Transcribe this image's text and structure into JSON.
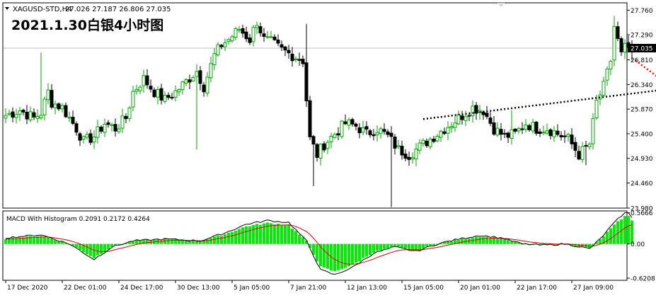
{
  "header": {
    "symbol": "XAGUSD-STD,H4",
    "ohlc": "27.026 27.187 26.806 27.035",
    "title": "2021.1.30白银4小时图"
  },
  "colors": {
    "up": "#00aa00",
    "down": "#000000",
    "macd_hist": "#00ee00",
    "signal": "#dd0000",
    "macd_line": "#000000",
    "trend": "#000000",
    "forecast": "#ff0000",
    "current_line": "#c0c0c0"
  },
  "macd": {
    "label": "MACD With Histogram 0.2091 0.2172 0.4264"
  },
  "chart_data": [
    {
      "type": "candlestick",
      "symbol": "XAGUSD-STD",
      "timeframe": "H4",
      "current_price": 27.035,
      "current_price_label": "27.035",
      "y_ticks": [
        "27.760",
        "27.290",
        "26.810",
        "26.340",
        "25.870",
        "25.400",
        "24.930",
        "24.460",
        "23.980"
      ],
      "x_ticks": [
        "17 Dec 2020",
        "22 Dec 01:00",
        "24 Dec 17:00",
        "30 Dec 13:00",
        "5 Jan 05:00",
        "7 Jan 21:00",
        "12 Jan 13:00",
        "15 Jan 05:00",
        "20 Jan 01:00",
        "22 Jan 17:00",
        "27 Jan 09:00"
      ],
      "ylim": [
        23.98,
        27.9
      ],
      "grid": false,
      "bar_count": 178,
      "anchors": [
        [
          0,
          25.75
        ],
        [
          4,
          25.85
        ],
        [
          8,
          25.7
        ],
        [
          10,
          25.8
        ],
        [
          12,
          26.2
        ],
        [
          13,
          26.0
        ],
        [
          16,
          25.9
        ],
        [
          20,
          25.5
        ],
        [
          22,
          25.25
        ],
        [
          25,
          25.35
        ],
        [
          28,
          25.6
        ],
        [
          31,
          25.5
        ],
        [
          34,
          25.7
        ],
        [
          36,
          26.2
        ],
        [
          39,
          26.45
        ],
        [
          42,
          26.2
        ],
        [
          45,
          26.05
        ],
        [
          48,
          26.2
        ],
        [
          51,
          26.4
        ],
        [
          54,
          26.6
        ],
        [
          56,
          26.3
        ],
        [
          59,
          26.9
        ],
        [
          61,
          27.1
        ],
        [
          63,
          27.2
        ],
        [
          66,
          27.4
        ],
        [
          69,
          27.2
        ],
        [
          71,
          27.55
        ],
        [
          73,
          27.2
        ],
        [
          75,
          27.15
        ],
        [
          78,
          27.0
        ],
        [
          81,
          26.9
        ],
        [
          84,
          26.8
        ],
        [
          86,
          25.3
        ],
        [
          88,
          25.0
        ],
        [
          90,
          25.2
        ],
        [
          93,
          25.4
        ],
        [
          96,
          25.6
        ],
        [
          99,
          25.55
        ],
        [
          102,
          25.4
        ],
        [
          105,
          25.5
        ],
        [
          108,
          25.35
        ],
        [
          111,
          25.1
        ],
        [
          114,
          25.0
        ],
        [
          117,
          25.15
        ],
        [
          120,
          25.3
        ],
        [
          123,
          25.45
        ],
        [
          126,
          25.6
        ],
        [
          129,
          25.75
        ],
        [
          132,
          25.9
        ],
        [
          135,
          25.85
        ],
        [
          138,
          25.5
        ],
        [
          141,
          25.35
        ],
        [
          144,
          25.4
        ],
        [
          147,
          25.6
        ],
        [
          150,
          25.5
        ],
        [
          153,
          25.5
        ],
        [
          156,
          25.4
        ],
        [
          159,
          25.3
        ],
        [
          162,
          25.0
        ],
        [
          165,
          25.2
        ],
        [
          167,
          26.0
        ],
        [
          169,
          26.3
        ],
        [
          171,
          26.8
        ],
        [
          172,
          27.45
        ],
        [
          174,
          26.9
        ],
        [
          175,
          27.035
        ]
      ],
      "spikes": [
        [
          10,
          26.95,
          "h"
        ],
        [
          85,
          27.5,
          "h"
        ],
        [
          143,
          25.85,
          "h"
        ],
        [
          87,
          24.4,
          "l"
        ],
        [
          109,
          24.0,
          "l"
        ],
        [
          164,
          24.8,
          "l"
        ],
        [
          172,
          27.65,
          "h"
        ],
        [
          54,
          25.1,
          "l"
        ]
      ],
      "trendline": {
        "from": [
          118,
          25.68
        ],
        "to": [
          210,
          26.44
        ],
        "label": ""
      },
      "forecast_path": {
        "points": [
          [
            178,
            26.8
          ],
          [
            189,
            26.25
          ],
          [
            201,
            27.75
          ]
        ],
        "label": ""
      }
    },
    {
      "type": "macd",
      "label": "MACD With Histogram 0.2091 0.2172 0.4264",
      "values": {
        "macd": 0.2091,
        "signal": 0.2172,
        "histogram": 0.4264
      },
      "y_ticks": [
        "0.5666",
        "0.00",
        "-0.6208"
      ],
      "ylim": [
        -0.66,
        0.6
      ],
      "anchors": [
        [
          0,
          0.1
        ],
        [
          10,
          0.15
        ],
        [
          18,
          0.0
        ],
        [
          25,
          -0.25
        ],
        [
          30,
          -0.05
        ],
        [
          36,
          0.05
        ],
        [
          45,
          0.08
        ],
        [
          55,
          0.05
        ],
        [
          62,
          0.18
        ],
        [
          68,
          0.32
        ],
        [
          74,
          0.38
        ],
        [
          80,
          0.35
        ],
        [
          85,
          0.05
        ],
        [
          89,
          -0.42
        ],
        [
          93,
          -0.5
        ],
        [
          98,
          -0.38
        ],
        [
          104,
          -0.15
        ],
        [
          110,
          -0.05
        ],
        [
          116,
          -0.12
        ],
        [
          122,
          0.0
        ],
        [
          128,
          0.08
        ],
        [
          134,
          0.14
        ],
        [
          140,
          0.1
        ],
        [
          146,
          0.0
        ],
        [
          152,
          -0.02
        ],
        [
          158,
          0.0
        ],
        [
          162,
          -0.04
        ],
        [
          165,
          -0.08
        ],
        [
          168,
          0.08
        ],
        [
          171,
          0.28
        ],
        [
          174,
          0.46
        ],
        [
          175,
          0.5
        ]
      ]
    }
  ]
}
